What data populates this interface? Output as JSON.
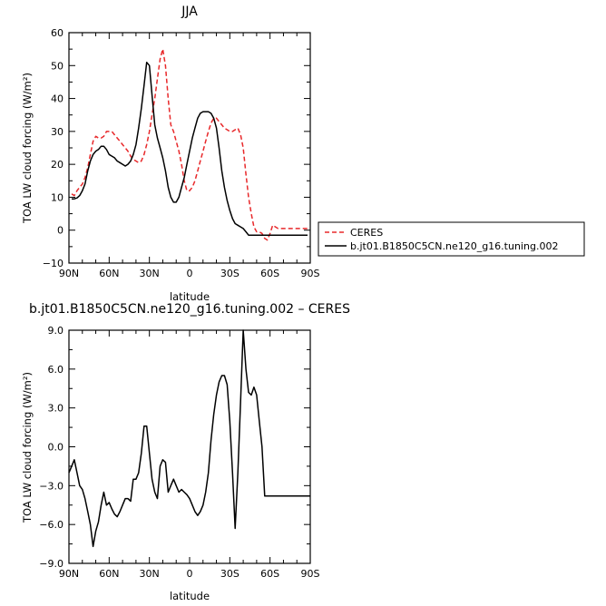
{
  "chart_data": [
    {
      "type": "line",
      "title": "JJA",
      "xlabel": "latitude",
      "ylabel": "TOA LW cloud forcing (W/m²)",
      "xlim": [
        90,
        -90
      ],
      "ylim": [
        -10,
        60
      ],
      "xticks": [
        90,
        60,
        30,
        0,
        -30,
        -60,
        -90
      ],
      "xtick_labels": [
        "90N",
        "60N",
        "30N",
        "0",
        "30S",
        "60S",
        "90S"
      ],
      "yticks": [
        -10,
        0,
        10,
        20,
        30,
        40,
        50,
        60
      ],
      "ytick_labels": [
        "−10",
        "0",
        "10",
        "20",
        "30",
        "40",
        "50",
        "60"
      ],
      "legend_placement": "right",
      "series": [
        {
          "name": "CERES",
          "color": "#e8282a",
          "dash": "dashed",
          "x": [
            88,
            86,
            84,
            82,
            80,
            78,
            76,
            74,
            72,
            70,
            68,
            66,
            64,
            62,
            60,
            58,
            56,
            54,
            52,
            50,
            48,
            46,
            44,
            42,
            40,
            38,
            36,
            34,
            32,
            30,
            28,
            26,
            24,
            22,
            20,
            18,
            16,
            14,
            12,
            10,
            8,
            6,
            4,
            2,
            0,
            -2,
            -4,
            -6,
            -8,
            -10,
            -12,
            -14,
            -16,
            -18,
            -20,
            -22,
            -24,
            -26,
            -28,
            -30,
            -32,
            -34,
            -36,
            -38,
            -40,
            -42,
            -44,
            -46,
            -48,
            -50,
            -52,
            -54,
            -56,
            -58,
            -60,
            -62,
            -64,
            -66,
            -68,
            -70,
            -72,
            -74,
            -76,
            -78,
            -80,
            -82,
            -84,
            -86,
            -88
          ],
          "y": [
            11,
            10.5,
            12,
            13,
            14,
            16,
            19,
            23,
            27,
            28.5,
            28,
            28,
            28.5,
            30,
            30,
            30,
            29,
            28,
            27,
            26,
            25,
            24,
            22.5,
            21.5,
            21,
            20.5,
            21,
            23,
            26,
            30,
            35,
            40,
            46,
            52,
            55,
            50,
            40,
            32,
            30,
            27,
            24,
            20,
            15,
            12,
            12,
            13,
            15,
            18,
            21,
            24,
            27,
            30,
            32.5,
            34,
            34,
            33,
            32,
            31,
            30.5,
            30,
            30,
            30.5,
            31,
            29,
            25,
            17,
            10,
            5,
            1,
            -0.5,
            -0.5,
            -1,
            -2.5,
            -3,
            -1,
            1.5,
            1,
            0.5,
            0.5,
            0.5,
            0.5,
            0.5,
            0.5,
            0.5,
            0.5,
            0.5,
            0.5,
            0.5,
            0.5
          ]
        },
        {
          "name": "b.jt01.B1850C5CN.ne120_g16.tuning.002",
          "color": "#000000",
          "dash": "solid",
          "x": [
            88,
            86,
            84,
            82,
            80,
            78,
            76,
            74,
            72,
            70,
            68,
            66,
            64,
            62,
            60,
            58,
            56,
            54,
            52,
            50,
            48,
            46,
            44,
            42,
            40,
            38,
            36,
            34,
            32,
            30,
            28,
            26,
            24,
            22,
            20,
            18,
            16,
            14,
            12,
            10,
            8,
            6,
            4,
            2,
            0,
            -2,
            -4,
            -6,
            -8,
            -10,
            -12,
            -14,
            -16,
            -18,
            -20,
            -22,
            -24,
            -26,
            -28,
            -30,
            -32,
            -34,
            -36,
            -38,
            -40,
            -42,
            -44,
            -46,
            -48,
            -50,
            -52,
            -54,
            -56,
            -58,
            -60,
            -62,
            -64,
            -66,
            -68,
            -70,
            -72,
            -74,
            -76,
            -78,
            -80,
            -82,
            -84,
            -86,
            -88
          ],
          "y": [
            9.5,
            9.5,
            9.8,
            10.5,
            12,
            14,
            18,
            21,
            23,
            24,
            24.5,
            25.5,
            25.5,
            24.5,
            23,
            22.5,
            22,
            21,
            20.5,
            20,
            19.5,
            20,
            21,
            23,
            26,
            31,
            37,
            44,
            51,
            50,
            41,
            32,
            28,
            25,
            22,
            18,
            13,
            10,
            8.5,
            8.5,
            10,
            13,
            16,
            20,
            24,
            28,
            31,
            34,
            35.5,
            36,
            36,
            36,
            35.5,
            34,
            31,
            25,
            18,
            13,
            9,
            6,
            3.5,
            2,
            1.5,
            1,
            0.5,
            -0.5,
            -1.5,
            -1.5,
            -1.5,
            -1.5,
            -1.5,
            -1.5,
            -1.5,
            -1.5,
            -1.5,
            -1.5,
            -1.5,
            -1.5,
            -1.5,
            -1.5,
            -1.5,
            -1.5,
            -1.5,
            -1.5,
            -1.5,
            -1.5,
            -1.5,
            -1.5,
            -1.5
          ]
        }
      ]
    },
    {
      "type": "line",
      "title": "b.jt01.B1850C5CN.ne120_g16.tuning.002 – CERES",
      "xlabel": "latitude",
      "ylabel": "TOA LW cloud forcing (W/m²)",
      "xlim": [
        90,
        -90
      ],
      "ylim": [
        -9,
        9
      ],
      "xticks": [
        90,
        60,
        30,
        0,
        -30,
        -60,
        -90
      ],
      "xtick_labels": [
        "90N",
        "60N",
        "30N",
        "0",
        "30S",
        "60S",
        "90S"
      ],
      "yticks": [
        -9,
        -6,
        -3,
        0,
        3,
        6,
        9
      ],
      "ytick_labels": [
        "−9.0",
        "−6.0",
        "−3.0",
        "0.0",
        "3.0",
        "6.0",
        "9.0"
      ],
      "series": [
        {
          "color": "#000000",
          "x": [
            90,
            88,
            86,
            84,
            82,
            80,
            78,
            76,
            74,
            72,
            70,
            68,
            66,
            64,
            62,
            60,
            58,
            56,
            54,
            52,
            50,
            48,
            46,
            44,
            42,
            40,
            38,
            36,
            34,
            32,
            30,
            28,
            26,
            24,
            22,
            20,
            18,
            16,
            14,
            12,
            10,
            8,
            6,
            4,
            2,
            0,
            -2,
            -4,
            -6,
            -8,
            -10,
            -12,
            -14,
            -16,
            -18,
            -20,
            -22,
            -24,
            -26,
            -28,
            -30,
            -32,
            -34,
            -36,
            -38,
            -40,
            -42,
            -44,
            -46,
            -48,
            -50,
            -52,
            -54,
            -56,
            -58,
            -60,
            -62,
            -64,
            -66,
            -68,
            -70,
            -72,
            -74,
            -76,
            -78,
            -80,
            -82,
            -84,
            -86,
            -88,
            -90
          ],
          "y": [
            -2,
            -1.5,
            -1,
            -2,
            -3,
            -3.3,
            -4,
            -5,
            -6,
            -7.7,
            -6.5,
            -5.8,
            -4.5,
            -3.5,
            -4.5,
            -4.3,
            -4.8,
            -5.2,
            -5.4,
            -5.0,
            -4.5,
            -4.0,
            -4.0,
            -4.2,
            -2.5,
            -2.5,
            -2.0,
            -0.5,
            1.6,
            1.6,
            -0.5,
            -2.5,
            -3.5,
            -4.0,
            -1.5,
            -1.0,
            -1.2,
            -3.5,
            -3.0,
            -2.5,
            -3.0,
            -3.5,
            -3.3,
            -3.5,
            -3.7,
            -4.0,
            -4.5,
            -5.0,
            -5.3,
            -5.0,
            -4.5,
            -3.5,
            -2.0,
            0.5,
            2.5,
            4.0,
            5.0,
            5.5,
            5.5,
            4.8,
            2.0,
            -2.0,
            -6.3,
            -2.0,
            3.5,
            9.0,
            6.0,
            4.2,
            4.0,
            4.6,
            4.0,
            2.0,
            0.0,
            -3.8,
            -3.8,
            -3.8,
            -3.8,
            -3.8,
            -3.8,
            -3.8,
            -3.8,
            -3.8,
            -3.8,
            -3.8,
            -3.8,
            -3.8,
            -3.8,
            -3.8,
            -3.8,
            -3.8,
            -3.8
          ]
        }
      ]
    }
  ]
}
